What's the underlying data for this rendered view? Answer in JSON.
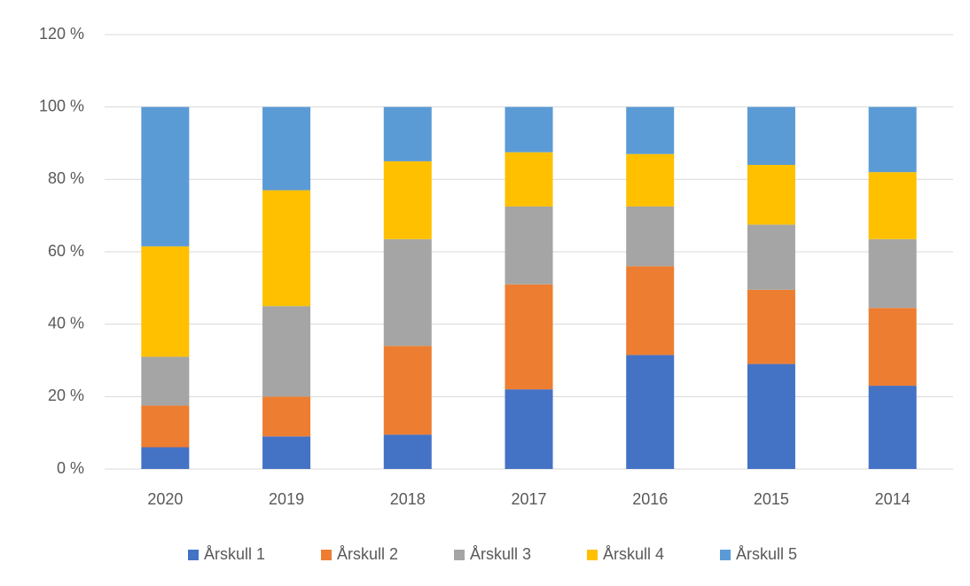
{
  "chart_data": {
    "type": "stacked_bar",
    "categories": [
      "2020",
      "2019",
      "2018",
      "2017",
      "2016",
      "2015",
      "2014"
    ],
    "series": [
      {
        "name": "Årskull 1",
        "color": "#4472c4",
        "values": [
          6,
          9,
          9.5,
          22,
          31.5,
          29,
          23
        ]
      },
      {
        "name": "Årskull 2",
        "color": "#ed7d31",
        "values": [
          11.5,
          11,
          24.5,
          29,
          24.5,
          20.5,
          21.5
        ]
      },
      {
        "name": "Årskull 3",
        "color": "#a5a5a5",
        "values": [
          13.5,
          25,
          29.5,
          21.5,
          16.5,
          18,
          19
        ]
      },
      {
        "name": "Årskull 4",
        "color": "#ffc000",
        "values": [
          30.5,
          32,
          21.5,
          15,
          14.5,
          16.5,
          18.5
        ]
      },
      {
        "name": "Årskull 5",
        "color": "#5b9bd5",
        "values": [
          38.5,
          23,
          15,
          12.5,
          13,
          16,
          18
        ]
      }
    ],
    "ylim": [
      0,
      120
    ],
    "yticks": [
      {
        "value": 0,
        "label": "0 %"
      },
      {
        "value": 20,
        "label": "20 %"
      },
      {
        "value": 40,
        "label": "40 %"
      },
      {
        "value": 60,
        "label": "60 %"
      },
      {
        "value": 80,
        "label": "80 %"
      },
      {
        "value": 100,
        "label": "100 %"
      },
      {
        "value": 120,
        "label": "120 %"
      }
    ],
    "grid": true,
    "legend": "bottom"
  }
}
